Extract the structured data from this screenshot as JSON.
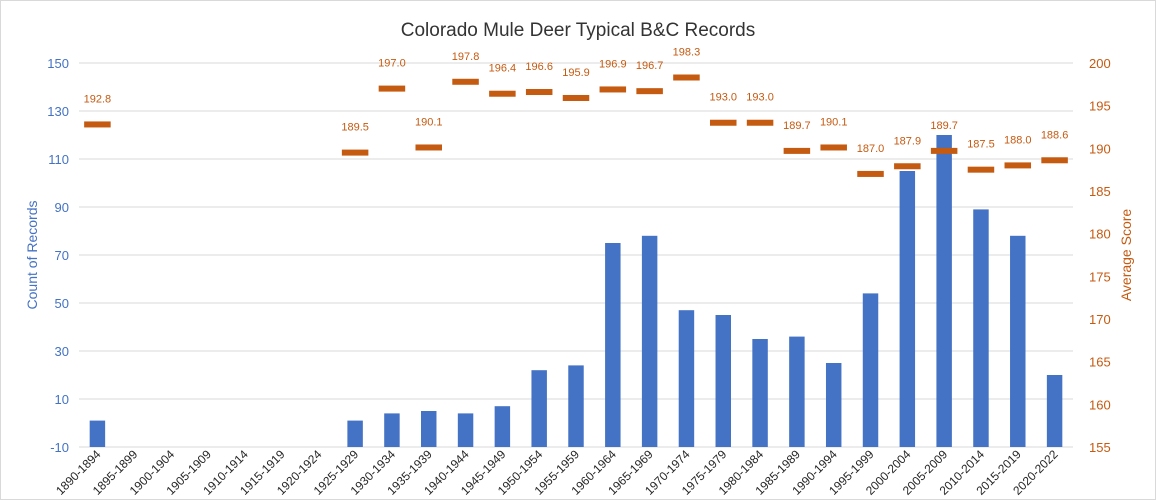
{
  "chart_data": {
    "type": "bar",
    "title": "Colorado Mule Deer Typical B&C Records",
    "categories": [
      "1890-1894",
      "1895-1899",
      "1900-1904",
      "1905-1909",
      "1910-1914",
      "1915-1919",
      "1920-1924",
      "1925-1929",
      "1930-1934",
      "1935-1939",
      "1940-1944",
      "1945-1949",
      "1950-1954",
      "1955-1959",
      "1960-1964",
      "1965-1969",
      "1970-1974",
      "1975-1979",
      "1980-1984",
      "1985-1989",
      "1990-1994",
      "1995-1999",
      "2000-2004",
      "2005-2009",
      "2010-2014",
      "2015-2019",
      "2020-2022"
    ],
    "series": [
      {
        "type": "bar",
        "axis": "left",
        "color": "#4472c4",
        "values": [
          1,
          null,
          null,
          null,
          null,
          null,
          null,
          1,
          4,
          5,
          4,
          7,
          22,
          24,
          75,
          78,
          47,
          45,
          35,
          36,
          25,
          54,
          105,
          120,
          89,
          78,
          20
        ]
      },
      {
        "type": "marker",
        "axis": "right",
        "color": "#c55a11",
        "values": [
          192.8,
          null,
          null,
          null,
          null,
          null,
          null,
          189.5,
          197.0,
          190.1,
          197.8,
          196.4,
          196.6,
          195.9,
          196.9,
          196.7,
          198.3,
          193.0,
          193.0,
          189.7,
          190.1,
          187.0,
          187.9,
          189.7,
          187.5,
          188.0,
          188.6
        ],
        "labels": [
          "192.8",
          "",
          "",
          "",
          "",
          "",
          "",
          "189.5",
          "197.0",
          "190.1",
          "197.8",
          "196.4",
          "196.6",
          "195.9",
          "196.9",
          "196.7",
          "198.3",
          "193.0",
          "193.0",
          "189.7",
          "190.1",
          "187.0",
          "187.9",
          "189.7",
          "187.5",
          "188.0",
          "188.6"
        ]
      }
    ],
    "y_left": {
      "label": "Count of Records",
      "min": -10,
      "max": 150,
      "ticks": [
        "150",
        "130",
        "110",
        "90",
        "70",
        "50",
        "30",
        "10",
        "-10"
      ]
    },
    "y_right": {
      "label": "Average Score",
      "min": 155,
      "max": 200,
      "ticks": [
        "200",
        "195",
        "190",
        "185",
        "180",
        "175",
        "170",
        "165",
        "160",
        "155"
      ]
    },
    "grid": true,
    "legend": "none"
  }
}
